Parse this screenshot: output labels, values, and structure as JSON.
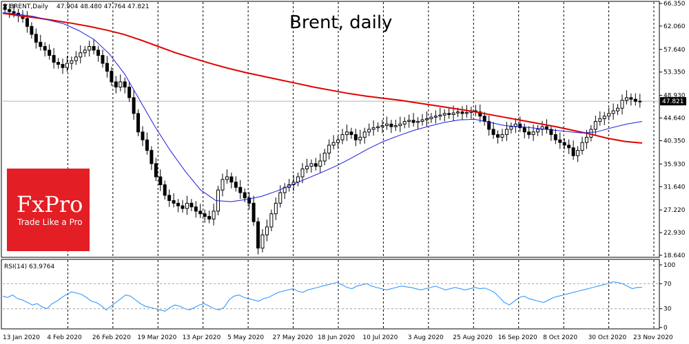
{
  "header": {
    "symbol": "BRENT,Daily",
    "ohlc": "47.904 48.480 47.764 47.821",
    "title": "Brent, daily"
  },
  "price_tag": "47.821",
  "rsi": {
    "label": "RSI(14) 63.9764",
    "levels": [
      70,
      30
    ],
    "axis_labels": [
      "100",
      "70",
      "30",
      "0"
    ]
  },
  "branding": {
    "logo_text": "FxPro",
    "tagline": "Trade Like a Pro",
    "color": "#e31e24"
  },
  "colors": {
    "ma_slow": "#e00000",
    "ma_fast": "#1a1adf",
    "rsi_line": "#1f8fff",
    "candles": "#000000"
  },
  "chart_data": [
    {
      "type": "candlestick",
      "title": "Brent, daily",
      "y_ticks": [
        "66.350",
        "62.060",
        "57.640",
        "53.350",
        "48.930",
        "44.640",
        "40.350",
        "35.930",
        "31.640",
        "27.220",
        "22.930",
        "18.640"
      ],
      "ylim": [
        18.64,
        66.35
      ],
      "x_ticks": [
        "13 Jan 2020",
        "4 Feb 2020",
        "26 Feb 2020",
        "19 Mar 2020",
        "13 Apr 2020",
        "5 May 2020",
        "27 May 2020",
        "18 Jun 2020",
        "10 Jul 2020",
        "3 Aug 2020",
        "25 Aug 2020",
        "16 Sep 2020",
        "8 Oct 2020",
        "30 Oct 2020",
        "23 Nov 2020"
      ],
      "last_price": 47.821,
      "series_close": [
        65.2,
        64.8,
        64.5,
        64.0,
        63.5,
        62.0,
        60.5,
        59.0,
        58.2,
        57.5,
        56.5,
        55.2,
        54.8,
        54.2,
        55.0,
        55.5,
        56.2,
        57.0,
        57.5,
        58.2,
        57.5,
        56.5,
        55.0,
        53.5,
        51.5,
        50.5,
        51.5,
        50.5,
        48.5,
        45.5,
        42.0,
        40.5,
        38.5,
        36.0,
        33.5,
        32.0,
        30.0,
        29.0,
        28.5,
        28.0,
        27.5,
        28.5,
        27.8,
        27.0,
        26.5,
        26.0,
        25.5,
        27.0,
        31.0,
        33.0,
        33.5,
        32.5,
        31.5,
        30.5,
        29.5,
        28.5,
        25.0,
        20.0,
        22.5,
        24.0,
        26.5,
        28.5,
        30.5,
        31.5,
        32.0,
        32.5,
        33.5,
        35.0,
        35.5,
        36.0,
        35.5,
        36.5,
        38.0,
        39.5,
        40.0,
        40.5,
        41.5,
        42.0,
        41.5,
        40.5,
        41.0,
        42.0,
        42.5,
        42.8,
        43.0,
        43.2,
        43.5,
        43.0,
        43.2,
        43.5,
        44.0,
        44.2,
        43.8,
        44.0,
        44.3,
        44.5,
        44.8,
        45.0,
        45.2,
        45.5,
        45.3,
        45.6,
        45.8,
        45.5,
        45.7,
        46.0,
        45.8,
        45.0,
        44.0,
        42.5,
        41.5,
        41.0,
        41.5,
        42.5,
        43.0,
        43.5,
        42.8,
        42.0,
        41.5,
        42.0,
        42.5,
        43.0,
        42.5,
        41.5,
        40.5,
        40.0,
        39.5,
        39.0,
        37.5,
        38.5,
        40.0,
        41.0,
        42.5,
        44.0,
        44.5,
        45.0,
        45.5,
        46.0,
        46.5,
        48.0,
        48.5,
        48.2,
        47.8,
        47.821
      ],
      "series_slow_ma": [
        64.5,
        64.0,
        63.6,
        63.1,
        62.6,
        62.0,
        61.3,
        60.5,
        59.4,
        58.2,
        57.0,
        56.0,
        55.0,
        54.1,
        53.3,
        52.6,
        51.9,
        51.2,
        50.5,
        49.9,
        49.3,
        48.8,
        48.4,
        48.0,
        47.5,
        47.0,
        46.5,
        46.0,
        45.4,
        44.8,
        44.2,
        43.6,
        43.0,
        42.3,
        41.6,
        40.8,
        40.2,
        39.9
      ],
      "series_fast_ma": [
        64.6,
        64.3,
        63.9,
        63.2,
        62.5,
        61.2,
        59.5,
        56.8,
        53.0,
        48.0,
        43.0,
        38.5,
        34.5,
        31.0,
        29.0,
        28.8,
        29.2,
        29.8,
        30.8,
        32.0,
        33.2,
        34.4,
        35.7,
        37.2,
        38.8,
        40.2,
        41.3,
        42.3,
        43.1,
        43.8,
        44.3,
        44.4,
        43.8,
        43.2,
        43.0,
        42.7,
        42.4,
        42.1,
        41.8,
        42.0,
        42.8,
        43.5,
        44.0
      ]
    },
    {
      "type": "line",
      "title": "RSI(14) 63.9764",
      "ylim": [
        0,
        100
      ],
      "y_ticks": [
        "100",
        "70",
        "30",
        "0"
      ],
      "series_rsi": [
        50,
        48,
        52,
        46,
        44,
        40,
        36,
        38,
        33,
        30,
        38,
        42,
        48,
        53,
        57,
        55,
        53,
        48,
        42,
        40,
        35,
        28,
        34,
        40,
        46,
        52,
        50,
        44,
        38,
        34,
        32,
        30,
        28,
        26,
        32,
        36,
        34,
        30,
        28,
        32,
        36,
        38,
        34,
        30,
        28,
        32,
        44,
        50,
        52,
        48,
        46,
        44,
        42,
        46,
        48,
        52,
        56,
        58,
        60,
        62,
        58,
        56,
        60,
        62,
        64,
        66,
        68,
        70,
        72,
        68,
        64,
        62,
        66,
        68,
        70,
        66,
        64,
        62,
        60,
        62,
        64,
        66,
        65,
        64,
        62,
        60,
        62,
        64,
        66,
        63,
        60,
        62,
        64,
        62,
        60,
        62,
        64,
        62,
        63,
        60,
        56,
        48,
        40,
        36,
        42,
        48,
        50,
        46,
        44,
        42,
        40,
        44,
        48,
        50,
        52,
        54,
        56,
        58,
        60,
        62,
        64,
        66,
        68,
        70,
        73,
        72,
        70,
        66,
        62,
        64,
        63.9764
      ]
    }
  ]
}
